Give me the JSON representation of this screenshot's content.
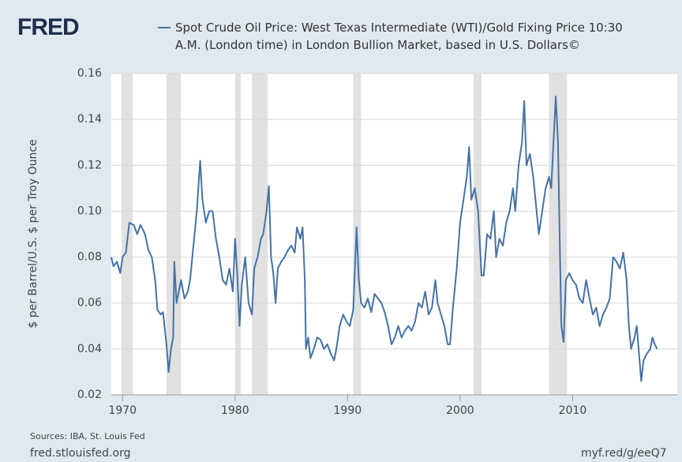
{
  "logo": "FRED",
  "chart_data": {
    "type": "line",
    "ylabel": "$ per Barrel/U.S. $ per Troy Ounce",
    "xlim": [
      1969,
      2019.3
    ],
    "xticks": [
      1970,
      1980,
      1990,
      2000,
      2010
    ],
    "ylim": [
      0.02,
      0.16
    ],
    "yticks": [
      0.02,
      0.04,
      0.06,
      0.08,
      {
        "value": 0.1,
        "label": "0.10"
      },
      0.12,
      0.14,
      0.16
    ],
    "grid": true,
    "recessions": [
      [
        1969.9,
        1970.9
      ],
      [
        1973.9,
        1975.2
      ],
      [
        1980.0,
        1980.5
      ],
      [
        1981.5,
        1982.9
      ],
      [
        1990.5,
        1991.2
      ],
      [
        2001.2,
        2001.9
      ],
      [
        2007.9,
        2009.5
      ]
    ],
    "x": [
      1969.0,
      1969.2,
      1969.5,
      1969.8,
      1970.0,
      1970.3,
      1970.6,
      1971.0,
      1971.3,
      1971.6,
      1972.0,
      1972.3,
      1972.6,
      1972.9,
      1973.1,
      1973.4,
      1973.6,
      1973.9,
      1974.1,
      1974.3,
      1974.5,
      1974.6,
      1974.8,
      1975.0,
      1975.2,
      1975.5,
      1975.8,
      1976.0,
      1976.3,
      1976.6,
      1976.9,
      1977.1,
      1977.4,
      1977.7,
      1978.0,
      1978.3,
      1978.6,
      1978.9,
      1979.2,
      1979.5,
      1979.8,
      1980.0,
      1980.2,
      1980.4,
      1980.6,
      1980.9,
      1981.2,
      1981.5,
      1981.7,
      1982.0,
      1982.3,
      1982.5,
      1982.8,
      1983.0,
      1983.2,
      1983.4,
      1983.6,
      1983.8,
      1984.1,
      1984.4,
      1984.7,
      1985.0,
      1985.3,
      1985.5,
      1985.8,
      1986.0,
      1986.2,
      1986.3,
      1986.5,
      1986.7,
      1987.0,
      1987.3,
      1987.6,
      1987.9,
      1988.2,
      1988.5,
      1988.8,
      1989.0,
      1989.3,
      1989.6,
      1989.9,
      1990.2,
      1990.5,
      1990.8,
      1991.0,
      1991.2,
      1991.5,
      1991.8,
      1992.1,
      1992.4,
      1992.7,
      1993.0,
      1993.3,
      1993.6,
      1993.9,
      1994.2,
      1994.5,
      1994.8,
      1995.1,
      1995.4,
      1995.7,
      1996.0,
      1996.3,
      1996.6,
      1996.9,
      1997.2,
      1997.5,
      1997.8,
      1998.0,
      1998.3,
      1998.6,
      1998.9,
      1999.1,
      1999.4,
      1999.7,
      2000.0,
      2000.3,
      2000.6,
      2000.8,
      2001.0,
      2001.3,
      2001.6,
      2001.9,
      2002.1,
      2002.4,
      2002.7,
      2003.0,
      2003.2,
      2003.5,
      2003.8,
      2004.1,
      2004.4,
      2004.7,
      2004.9,
      2005.2,
      2005.5,
      2005.7,
      2005.9,
      2006.2,
      2006.5,
      2006.8,
      2007.0,
      2007.3,
      2007.6,
      2007.9,
      2008.1,
      2008.4,
      2008.5,
      2008.7,
      2008.9,
      2009.0,
      2009.2,
      2009.4,
      2009.7,
      2010.0,
      2010.3,
      2010.6,
      2010.9,
      2011.2,
      2011.5,
      2011.8,
      2012.1,
      2012.4,
      2012.7,
      2013.0,
      2013.3,
      2013.6,
      2013.9,
      2014.2,
      2014.5,
      2014.8,
      2015.0,
      2015.2,
      2015.5,
      2015.7,
      2015.9,
      2016.1,
      2016.3,
      2016.6,
      2016.9,
      2017.1,
      2017.3,
      2017.5
    ],
    "series": [
      {
        "name": "Spot Crude Oil Price: West Texas Intermediate (WTI)/Gold Fixing Price 10:30 A.M. (London time) in London Bullion Market, based in U.S. Dollars©",
        "color": "#4572a7",
        "values": [
          0.08,
          0.076,
          0.078,
          0.073,
          0.08,
          0.082,
          0.095,
          0.094,
          0.09,
          0.094,
          0.09,
          0.083,
          0.08,
          0.07,
          0.057,
          0.055,
          0.056,
          0.042,
          0.03,
          0.04,
          0.045,
          0.078,
          0.06,
          0.065,
          0.07,
          0.062,
          0.065,
          0.07,
          0.085,
          0.1,
          0.122,
          0.105,
          0.095,
          0.1,
          0.1,
          0.088,
          0.08,
          0.07,
          0.068,
          0.075,
          0.065,
          0.088,
          0.072,
          0.05,
          0.068,
          0.08,
          0.06,
          0.055,
          0.075,
          0.08,
          0.088,
          0.09,
          0.1,
          0.111,
          0.08,
          0.073,
          0.06,
          0.075,
          0.078,
          0.08,
          0.083,
          0.085,
          0.082,
          0.093,
          0.088,
          0.093,
          0.07,
          0.04,
          0.045,
          0.036,
          0.04,
          0.045,
          0.044,
          0.04,
          0.042,
          0.038,
          0.035,
          0.04,
          0.05,
          0.055,
          0.052,
          0.05,
          0.057,
          0.093,
          0.07,
          0.06,
          0.058,
          0.062,
          0.056,
          0.064,
          0.062,
          0.06,
          0.056,
          0.05,
          0.042,
          0.045,
          0.05,
          0.045,
          0.048,
          0.05,
          0.048,
          0.052,
          0.06,
          0.058,
          0.065,
          0.055,
          0.058,
          0.07,
          0.06,
          0.055,
          0.05,
          0.042,
          0.042,
          0.06,
          0.075,
          0.095,
          0.105,
          0.115,
          0.128,
          0.105,
          0.11,
          0.1,
          0.072,
          0.072,
          0.09,
          0.088,
          0.1,
          0.08,
          0.088,
          0.085,
          0.095,
          0.1,
          0.11,
          0.1,
          0.12,
          0.13,
          0.148,
          0.12,
          0.125,
          0.115,
          0.1,
          0.09,
          0.1,
          0.11,
          0.115,
          0.11,
          0.14,
          0.15,
          0.13,
          0.075,
          0.05,
          0.043,
          0.07,
          0.073,
          0.07,
          0.068,
          0.062,
          0.06,
          0.07,
          0.062,
          0.055,
          0.058,
          0.05,
          0.055,
          0.058,
          0.062,
          0.08,
          0.078,
          0.075,
          0.082,
          0.07,
          0.05,
          0.04,
          0.045,
          0.05,
          0.038,
          0.026,
          0.035,
          0.038,
          0.04,
          0.045,
          0.042,
          0.04
        ]
      }
    ]
  },
  "footer": {
    "sources": "Sources: IBA, St. Louis Fed",
    "site": "fred.stlouisfed.org",
    "link": "myf.red/g/eeQ7"
  }
}
